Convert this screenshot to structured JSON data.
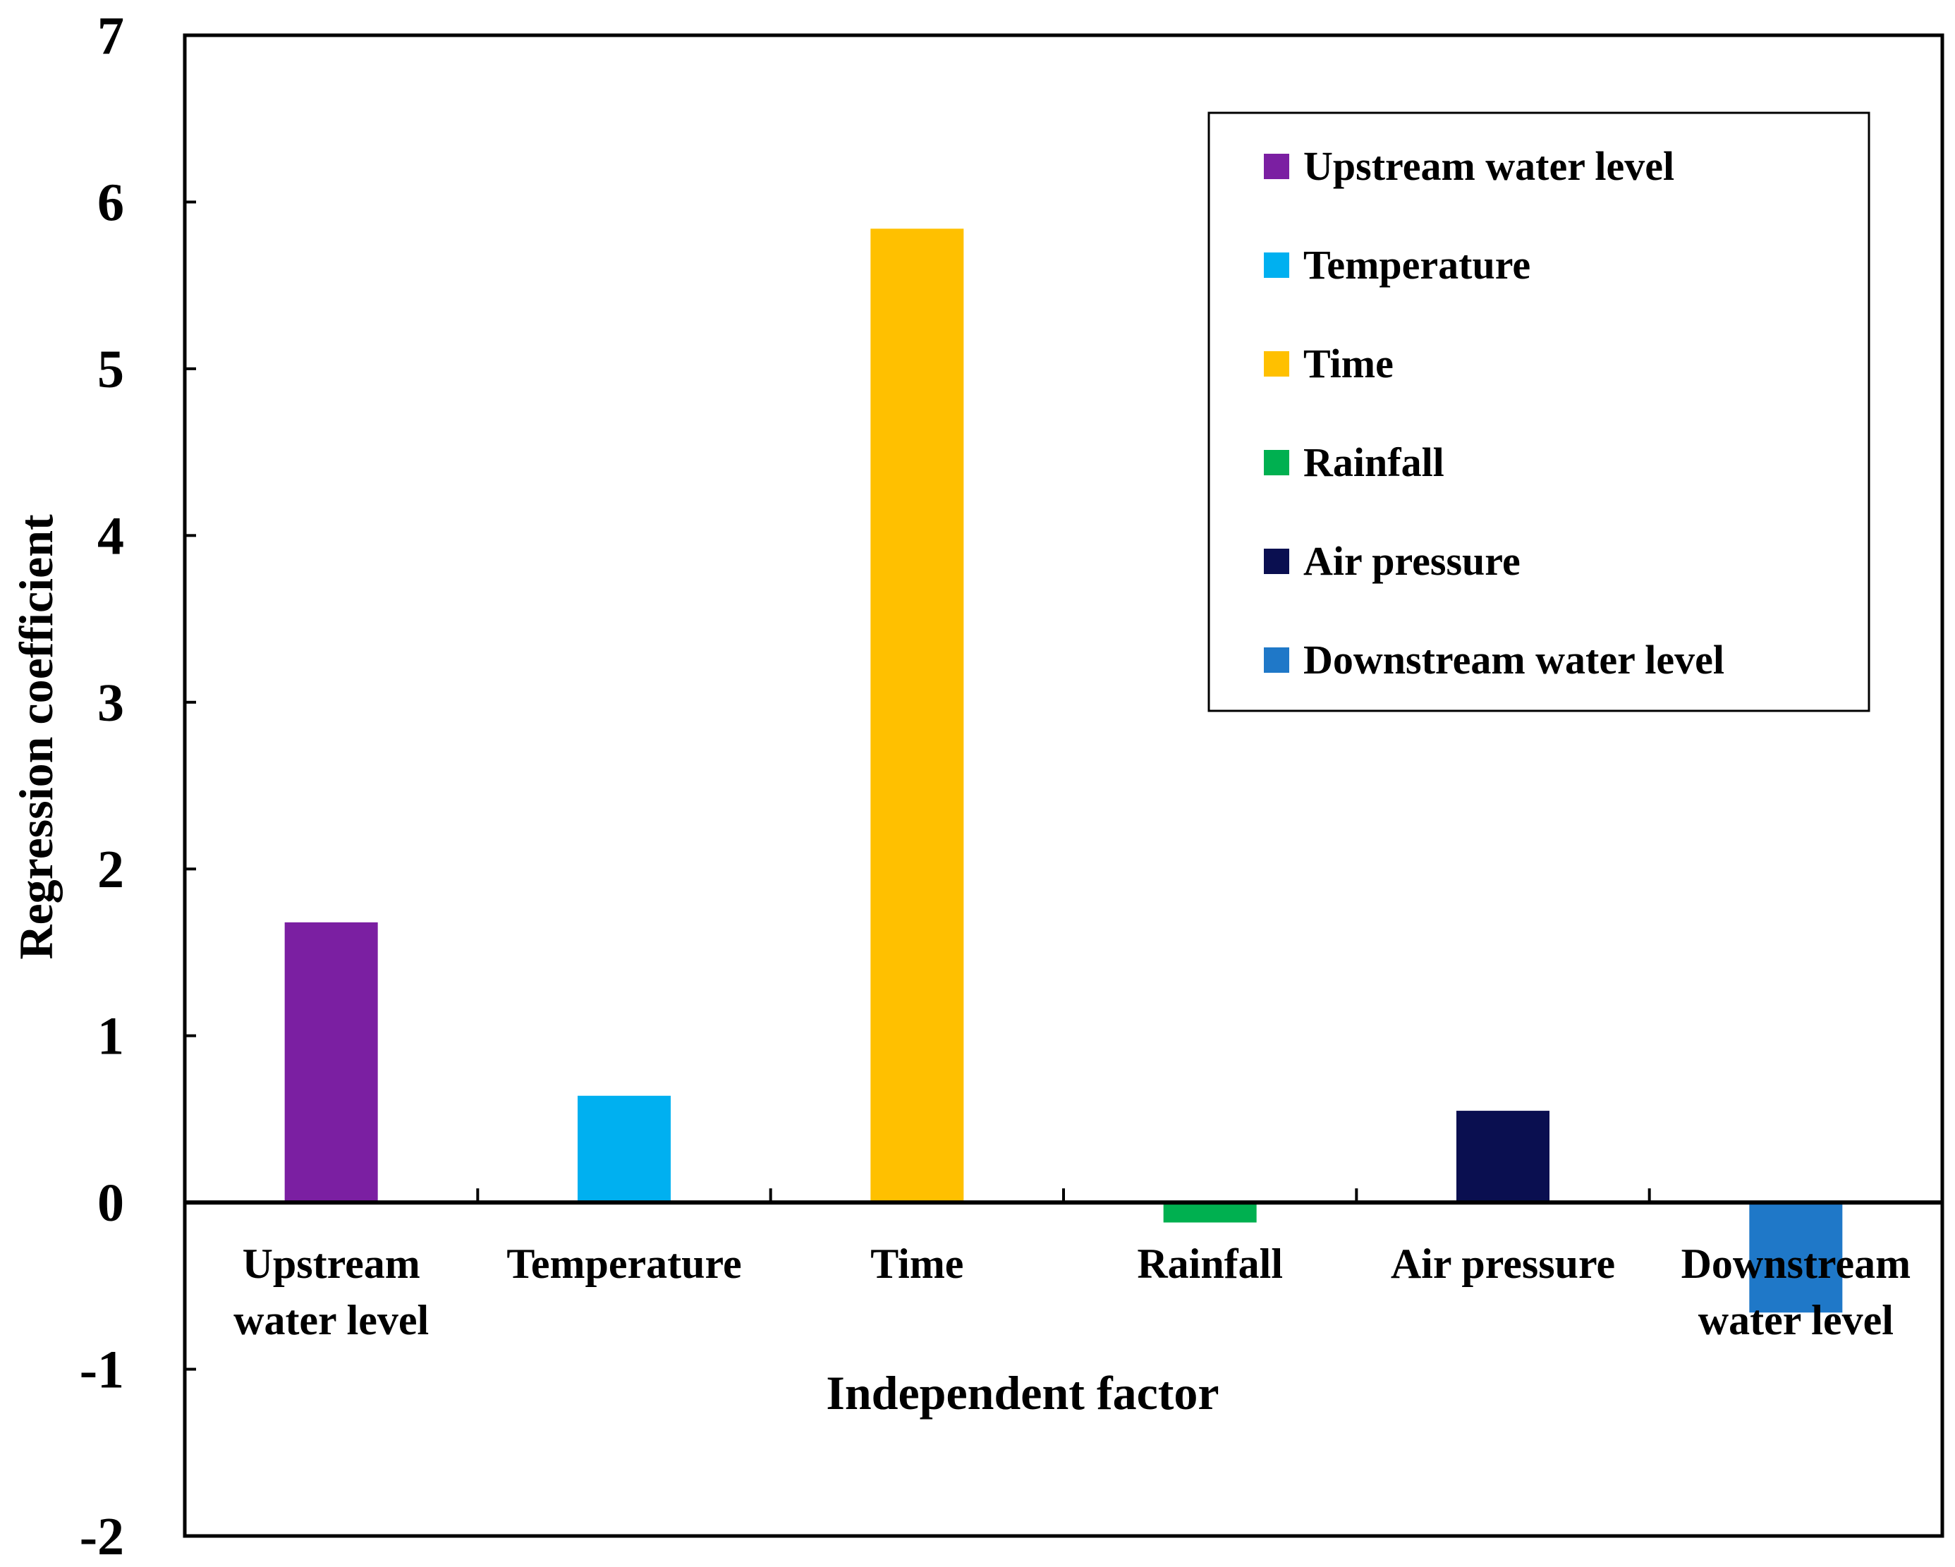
{
  "chart_data": {
    "type": "bar",
    "categories": [
      "Upstream water level",
      "Temperature",
      "Time",
      "Rainfall",
      "Air pressure",
      "Downstream water level"
    ],
    "category_lines": [
      [
        "Upstream",
        "water level"
      ],
      [
        "Temperature"
      ],
      [
        "Time"
      ],
      [
        "Rainfall"
      ],
      [
        "Air pressure"
      ],
      [
        "Downstream",
        "water level"
      ]
    ],
    "values": [
      1.68,
      0.64,
      5.84,
      -0.12,
      0.55,
      -0.66
    ],
    "colors": [
      "#7B1FA2",
      "#00B0F0",
      "#FFC000",
      "#00B050",
      "#0A0F50",
      "#1F78C8"
    ],
    "title": "",
    "xlabel": "Independent factor",
    "ylabel": "Regression coefficient",
    "ylim": [
      -2,
      7
    ],
    "yticks": [
      -2,
      -1,
      0,
      1,
      2,
      3,
      4,
      5,
      6,
      7
    ],
    "grid": false,
    "legend": {
      "position": "top-right",
      "entries": [
        "Upstream water level",
        "Temperature",
        "Time",
        "Rainfall",
        "Air pressure",
        "Downstream water level"
      ]
    }
  }
}
